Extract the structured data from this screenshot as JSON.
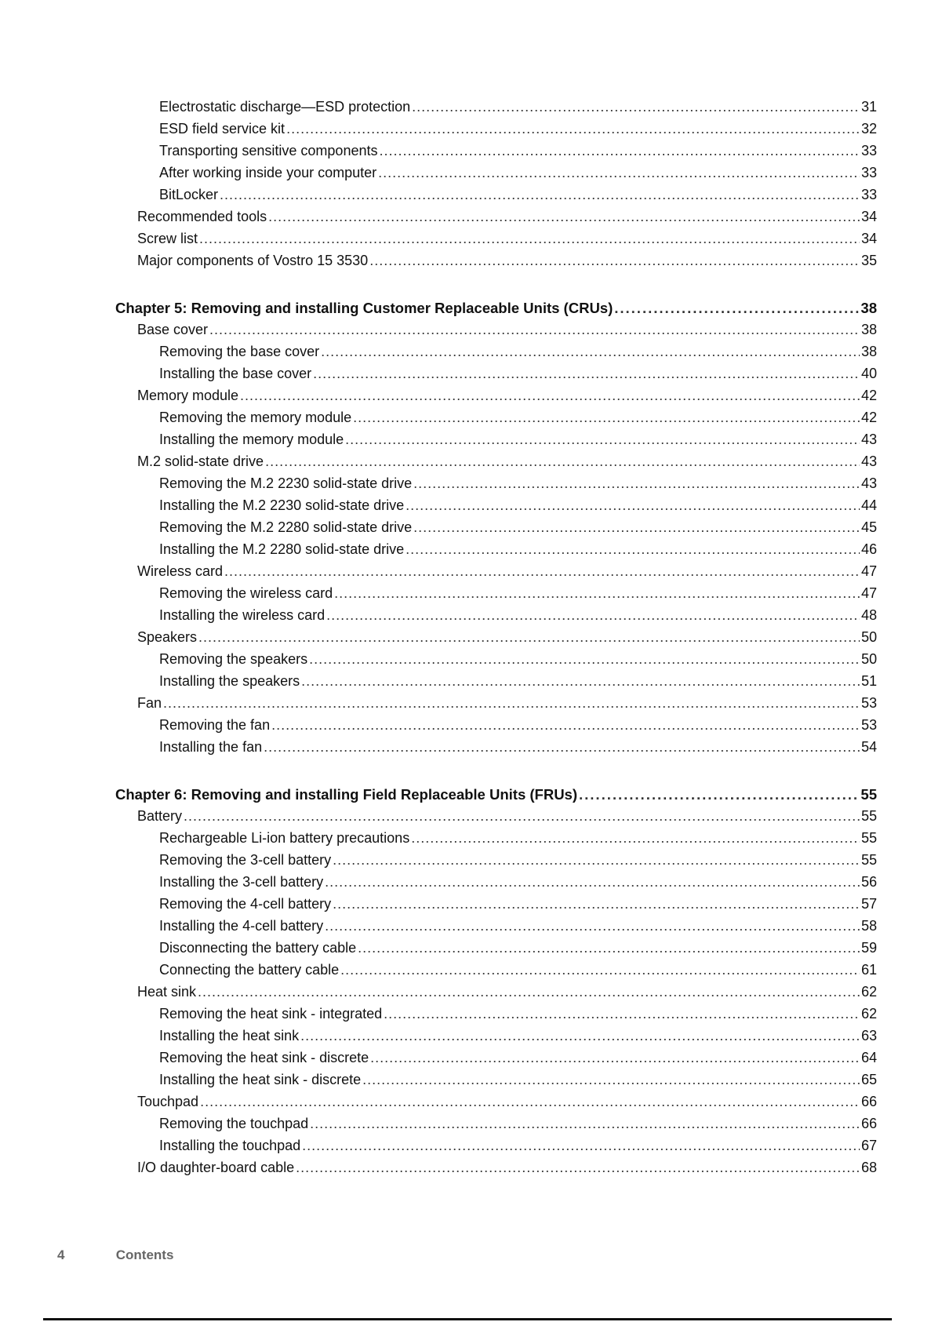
{
  "toc": [
    {
      "level": 2,
      "title": "Electrostatic discharge—ESD protection",
      "page": "31"
    },
    {
      "level": 2,
      "title": "ESD field service kit",
      "page": "32"
    },
    {
      "level": 2,
      "title": "Transporting sensitive components",
      "page": "33"
    },
    {
      "level": 2,
      "title": "After working inside your computer",
      "page": "33"
    },
    {
      "level": 2,
      "title": "BitLocker",
      "page": "33"
    },
    {
      "level": 1,
      "title": "Recommended tools",
      "page": "34"
    },
    {
      "level": 1,
      "title": "Screw list",
      "page": "34"
    },
    {
      "level": 1,
      "title": "Major components of Vostro 15 3530",
      "page": "35"
    },
    {
      "level": 0,
      "title": "Chapter 5: Removing and installing Customer Replaceable Units (CRUs)",
      "page": "38"
    },
    {
      "level": 1,
      "title": "Base cover",
      "page": "38"
    },
    {
      "level": 2,
      "title": "Removing the base cover",
      "page": "38"
    },
    {
      "level": 2,
      "title": "Installing the base cover",
      "page": "40"
    },
    {
      "level": 1,
      "title": "Memory module",
      "page": "42"
    },
    {
      "level": 2,
      "title": "Removing the memory module",
      "page": "42"
    },
    {
      "level": 2,
      "title": "Installing the memory module",
      "page": "43"
    },
    {
      "level": 1,
      "title": "M.2 solid-state drive",
      "page": "43"
    },
    {
      "level": 2,
      "title": "Removing the M.2 2230 solid-state drive",
      "page": "43"
    },
    {
      "level": 2,
      "title": "Installing the M.2 2230 solid-state drive",
      "page": "44"
    },
    {
      "level": 2,
      "title": "Removing the M.2 2280 solid-state drive",
      "page": "45"
    },
    {
      "level": 2,
      "title": "Installing the M.2 2280 solid-state drive",
      "page": "46"
    },
    {
      "level": 1,
      "title": "Wireless card",
      "page": "47"
    },
    {
      "level": 2,
      "title": "Removing the wireless card",
      "page": "47"
    },
    {
      "level": 2,
      "title": "Installing the wireless card",
      "page": "48"
    },
    {
      "level": 1,
      "title": "Speakers",
      "page": "50"
    },
    {
      "level": 2,
      "title": "Removing the speakers",
      "page": "50"
    },
    {
      "level": 2,
      "title": "Installing the speakers",
      "page": "51"
    },
    {
      "level": 1,
      "title": "Fan",
      "page": "53"
    },
    {
      "level": 2,
      "title": "Removing the fan",
      "page": "53"
    },
    {
      "level": 2,
      "title": "Installing the fan",
      "page": "54"
    },
    {
      "level": 0,
      "title": "Chapter 6: Removing and installing Field Replaceable Units (FRUs)",
      "page": "55"
    },
    {
      "level": 1,
      "title": "Battery",
      "page": "55"
    },
    {
      "level": 2,
      "title": "Rechargeable Li-ion battery precautions",
      "page": "55"
    },
    {
      "level": 2,
      "title": "Removing the 3-cell battery",
      "page": "55"
    },
    {
      "level": 2,
      "title": "Installing the 3-cell battery",
      "page": "56"
    },
    {
      "level": 2,
      "title": "Removing the 4-cell battery",
      "page": "57"
    },
    {
      "level": 2,
      "title": "Installing the 4-cell battery",
      "page": "58"
    },
    {
      "level": 2,
      "title": "Disconnecting the battery cable",
      "page": "59"
    },
    {
      "level": 2,
      "title": "Connecting the battery cable",
      "page": "61"
    },
    {
      "level": 1,
      "title": "Heat sink",
      "page": "62"
    },
    {
      "level": 2,
      "title": "Removing the heat sink - integrated",
      "page": "62"
    },
    {
      "level": 2,
      "title": "Installing the heat sink",
      "page": "63"
    },
    {
      "level": 2,
      "title": "Removing the heat sink - discrete",
      "page": "64"
    },
    {
      "level": 2,
      "title": "Installing the heat sink - discrete",
      "page": "65"
    },
    {
      "level": 1,
      "title": "Touchpad",
      "page": "66"
    },
    {
      "level": 2,
      "title": "Removing the touchpad",
      "page": "66"
    },
    {
      "level": 2,
      "title": "Installing the touchpad",
      "page": "67"
    },
    {
      "level": 1,
      "title": "I/O daughter-board cable",
      "page": "68"
    }
  ],
  "footer": {
    "page_number": "4",
    "section": "Contents"
  }
}
